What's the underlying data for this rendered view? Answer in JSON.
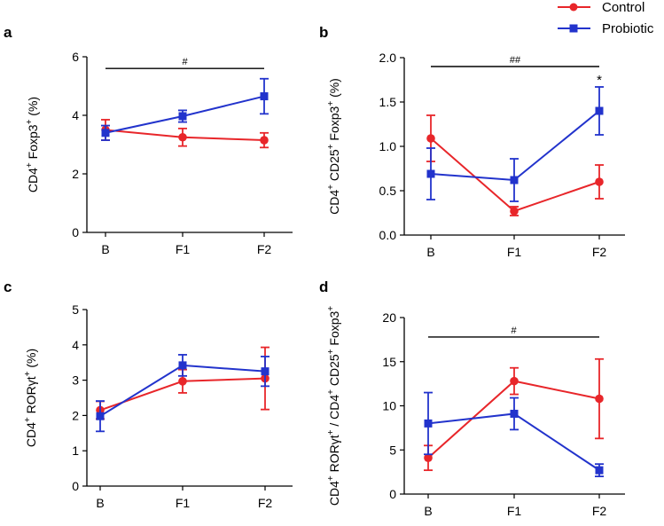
{
  "legend": {
    "entries": [
      {
        "name": "Control",
        "color": "#e8262a",
        "marker": "circle"
      },
      {
        "name": "Probiotic",
        "color": "#2233cc",
        "marker": "square"
      }
    ]
  },
  "chart_data": [
    {
      "panel": "a",
      "type": "line",
      "categories": [
        "B",
        "F1",
        "F2"
      ],
      "ylabel_parts": [
        [
          "CD4",
          "+"
        ],
        [
          " Foxp3",
          "+"
        ],
        [
          " (%)",
          ""
        ]
      ],
      "ylim": [
        0,
        6
      ],
      "yticks": [
        0,
        2,
        4,
        6
      ],
      "ytick_labels": [
        "0",
        "2",
        "4",
        "6"
      ],
      "series": [
        {
          "name": "Control",
          "color": "#e8262a",
          "marker": "circle",
          "values": [
            3.5,
            3.25,
            3.15
          ],
          "errors": [
            0.35,
            0.3,
            0.25
          ]
        },
        {
          "name": "Probiotic",
          "color": "#2233cc",
          "marker": "square",
          "values": [
            3.4,
            3.97,
            4.65
          ],
          "errors": [
            0.25,
            0.2,
            0.6
          ]
        }
      ],
      "annotations": [
        {
          "text": "#",
          "from": 0,
          "to": 2,
          "y": 5.6
        }
      ],
      "star": null
    },
    {
      "panel": "b",
      "type": "line",
      "categories": [
        "B",
        "F1",
        "F2"
      ],
      "ylabel_parts": [
        [
          "CD4",
          "+"
        ],
        [
          " CD25",
          "+"
        ],
        [
          " Foxp3",
          "+"
        ],
        [
          " (%)",
          ""
        ]
      ],
      "ylim": [
        0,
        2.0
      ],
      "yticks": [
        0,
        0.5,
        1.0,
        1.5,
        2.0
      ],
      "ytick_labels": [
        "0.0",
        "0.5",
        "1.0",
        "1.5",
        "2.0"
      ],
      "series": [
        {
          "name": "Control",
          "color": "#e8262a",
          "marker": "circle",
          "values": [
            1.09,
            0.27,
            0.6
          ],
          "errors": [
            0.26,
            0.05,
            0.19
          ]
        },
        {
          "name": "Probiotic",
          "color": "#2233cc",
          "marker": "square",
          "values": [
            0.69,
            0.62,
            1.4
          ],
          "errors": [
            0.29,
            0.24,
            0.27
          ]
        }
      ],
      "annotations": [
        {
          "text": "##",
          "from": 0,
          "to": 2,
          "y": 1.9
        }
      ],
      "star": {
        "text": "*",
        "index": 2,
        "y": 1.74
      }
    },
    {
      "panel": "c",
      "type": "line",
      "categories": [
        "B",
        "F1",
        "F2"
      ],
      "ylabel_parts": [
        [
          "CD4",
          "+"
        ],
        [
          " RORγt",
          "+"
        ],
        [
          " (%)",
          ""
        ]
      ],
      "ylim": [
        0,
        5
      ],
      "yticks": [
        0,
        1,
        2,
        3,
        4,
        5
      ],
      "ytick_labels": [
        "0",
        "1",
        "2",
        "3",
        "4",
        "5"
      ],
      "series": [
        {
          "name": "Control",
          "color": "#e8262a",
          "marker": "circle",
          "values": [
            2.15,
            2.97,
            3.05
          ],
          "errors": [
            0.25,
            0.33,
            0.88
          ]
        },
        {
          "name": "Probiotic",
          "color": "#2233cc",
          "marker": "square",
          "values": [
            1.98,
            3.42,
            3.25
          ],
          "errors": [
            0.43,
            0.3,
            0.42
          ]
        }
      ],
      "annotations": [],
      "star": null
    },
    {
      "panel": "d",
      "type": "line",
      "categories": [
        "B",
        "F1",
        "F2"
      ],
      "ylabel_parts": [
        [
          "CD4",
          "+"
        ],
        [
          " RORγt",
          "+"
        ],
        [
          " / CD4",
          "+"
        ],
        [
          " CD25",
          "+"
        ],
        [
          " Foxp3",
          "+"
        ]
      ],
      "ylim": [
        0,
        20
      ],
      "yticks": [
        0,
        5,
        10,
        15,
        20
      ],
      "ytick_labels": [
        "0",
        "5",
        "10",
        "15",
        "20"
      ],
      "series": [
        {
          "name": "Control",
          "color": "#e8262a",
          "marker": "circle",
          "values": [
            4.1,
            12.8,
            10.8
          ],
          "errors": [
            1.4,
            1.5,
            4.5
          ]
        },
        {
          "name": "Probiotic",
          "color": "#2233cc",
          "marker": "square",
          "values": [
            8.0,
            9.1,
            2.7
          ],
          "errors": [
            3.5,
            1.8,
            0.7
          ]
        }
      ],
      "annotations": [
        {
          "text": "#",
          "from": 0,
          "to": 2,
          "y": 17.8
        }
      ],
      "star": null
    }
  ]
}
